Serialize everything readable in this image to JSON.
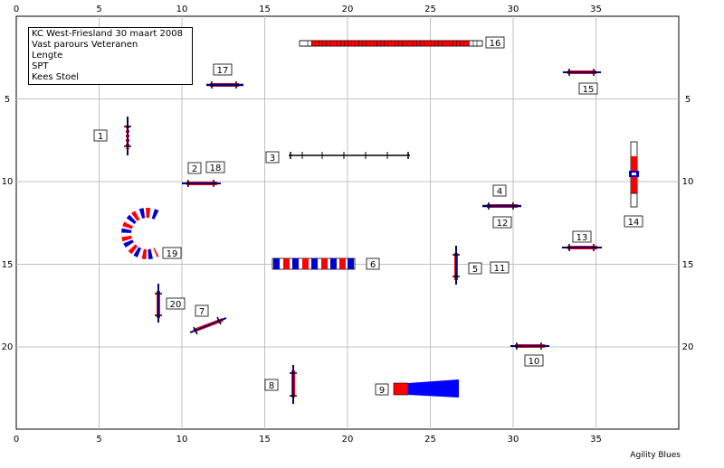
{
  "course": {
    "club_date": "KC West-Friesland 30 maart 2008",
    "class": "Vast parours Veteranen",
    "size": "Lengte",
    "extra": "SPT",
    "judge": "Kees Stoel"
  },
  "grid": {
    "x_ticks": [
      "0",
      "5",
      "10",
      "15",
      "20",
      "25",
      "30",
      "35"
    ],
    "y_ticks": [
      "5",
      "10",
      "15",
      "20"
    ]
  },
  "obstacle_numbers": [
    "1",
    "2",
    "3",
    "4",
    "5",
    "6",
    "7",
    "8",
    "9",
    "10",
    "11",
    "12",
    "13",
    "14",
    "15",
    "16",
    "17",
    "18",
    "19",
    "20"
  ],
  "credit": "Agility Blues",
  "colors": {
    "grid": "#c0c0c0",
    "jump_bar": "#000080",
    "rail_red": "#ff0000",
    "tunnel_blue": "#0000ff"
  }
}
